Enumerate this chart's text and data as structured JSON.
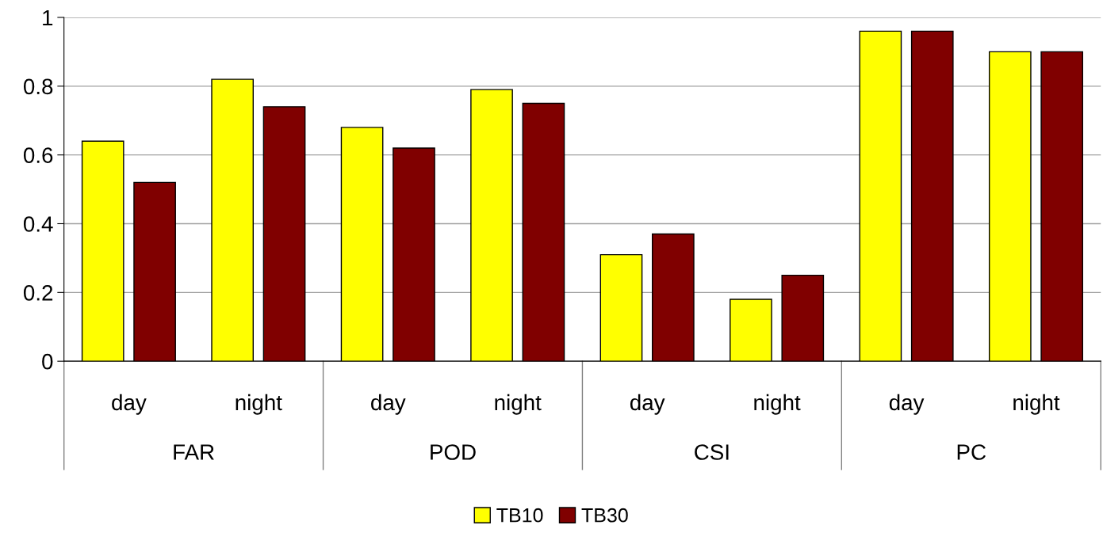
{
  "chart_data": {
    "type": "bar",
    "categories": [
      "day",
      "night",
      "day",
      "night",
      "day",
      "night",
      "day",
      "night"
    ],
    "annotations": [
      "FAR",
      "POD",
      "CSI",
      "PC"
    ],
    "series": [
      {
        "name": "TB10",
        "color": "#ffff00",
        "values": [
          0.64,
          0.82,
          0.68,
          0.79,
          0.31,
          0.18,
          0.96,
          0.9
        ]
      },
      {
        "name": "TB30",
        "color": "#800000",
        "values": [
          0.52,
          0.74,
          0.62,
          0.75,
          0.37,
          0.25,
          0.96,
          0.9
        ]
      }
    ],
    "ylim": [
      0,
      1
    ],
    "yticks": [
      0,
      0.2,
      0.4,
      0.6,
      0.8,
      1
    ],
    "grid": "y",
    "legend": "bottom"
  }
}
